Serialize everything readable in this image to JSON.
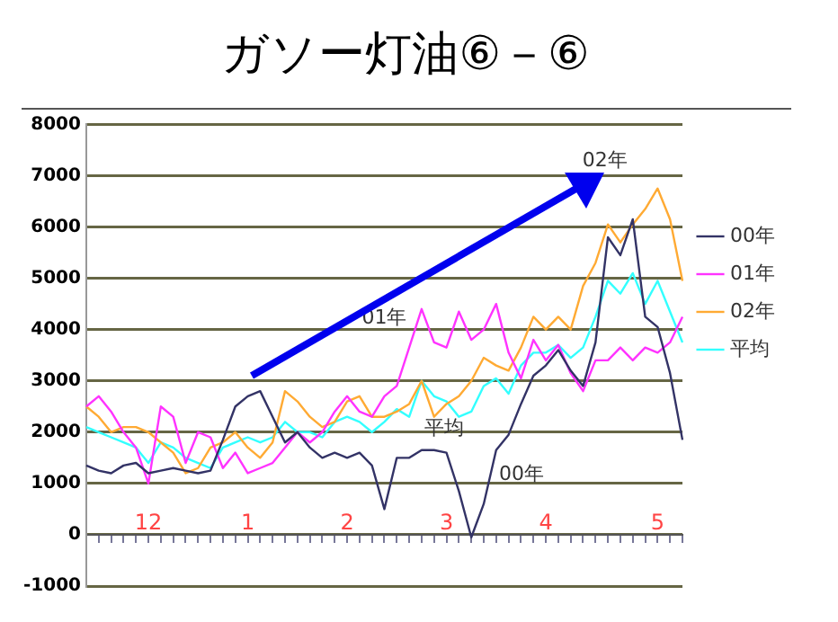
{
  "chart_data": {
    "type": "line",
    "title": "ガソー灯油⑥－⑥",
    "categories": [
      null,
      null,
      null,
      null,
      null,
      "12",
      null,
      null,
      null,
      null,
      null,
      null,
      null,
      "1",
      null,
      null,
      null,
      null,
      null,
      null,
      null,
      "2",
      null,
      null,
      null,
      null,
      null,
      null,
      null,
      "3",
      null,
      null,
      null,
      null,
      null,
      null,
      null,
      "4",
      null,
      null,
      null,
      null,
      null,
      null,
      null,
      null,
      "5",
      null,
      null
    ],
    "series": [
      {
        "name": "00年",
        "color": "#333366",
        "values": [
          1350,
          1250,
          1200,
          1350,
          1400,
          1200,
          1250,
          1300,
          1250,
          1200,
          1250,
          1850,
          2500,
          2700,
          2800,
          2300,
          1800,
          2000,
          1700,
          1500,
          1600,
          1500,
          1600,
          1350,
          500,
          1500,
          1500,
          1650,
          1650,
          1600,
          850,
          -50,
          600,
          1650,
          1950,
          2550,
          3100,
          3300,
          3600,
          3200,
          2900,
          3750,
          5800,
          5450,
          6150,
          4250,
          4050,
          3150,
          1850
        ]
      },
      {
        "name": "01年",
        "color": "#ff33ff",
        "values": [
          2500,
          2700,
          2400,
          2000,
          1700,
          1000,
          2500,
          2300,
          1400,
          2000,
          1900,
          1300,
          1600,
          1200,
          1300,
          1400,
          1700,
          2000,
          1800,
          2000,
          2400,
          2700,
          2400,
          2300,
          2700,
          2900,
          3650,
          4400,
          3750,
          3650,
          4350,
          3800,
          4000,
          4500,
          3550,
          3050,
          3800,
          3400,
          3700,
          3150,
          2800,
          3400,
          3400,
          3650,
          3400,
          3650,
          3550,
          3750,
          4250
        ]
      },
      {
        "name": "02年",
        "color": "#ffaa33",
        "values": [
          2500,
          2300,
          2000,
          2100,
          2100,
          2000,
          1800,
          1600,
          1200,
          1300,
          1700,
          1800,
          2000,
          1700,
          1500,
          1800,
          2800,
          2600,
          2300,
          2100,
          2200,
          2600,
          2700,
          2300,
          2300,
          2400,
          2550,
          3000,
          2300,
          2550,
          2700,
          3000,
          3450,
          3300,
          3200,
          3650,
          4250,
          4000,
          4250,
          4000,
          4850,
          5300,
          6050,
          5700,
          6050,
          6350,
          6750,
          6150,
          4950
        ]
      },
      {
        "name": "平均",
        "color": "#33ffff",
        "values": [
          2100,
          2000,
          1900,
          1800,
          1700,
          1400,
          1800,
          1700,
          1500,
          1400,
          1300,
          1700,
          1800,
          1900,
          1800,
          1900,
          2200,
          2000,
          2000,
          1900,
          2200,
          2300,
          2200,
          2000,
          2200,
          2450,
          2300,
          3000,
          2700,
          2600,
          2300,
          2400,
          2900,
          3050,
          2750,
          3300,
          3550,
          3550,
          3700,
          3450,
          3650,
          4250,
          4950,
          4700,
          5100,
          4500,
          4950,
          4350,
          3750
        ]
      }
    ],
    "annotations": [
      "01年",
      "02年",
      "平均",
      "00年"
    ],
    "ylim": [
      -1000,
      8000
    ],
    "yticks": [
      -1000,
      0,
      1000,
      2000,
      3000,
      4000,
      5000,
      6000,
      7000,
      8000
    ],
    "grid": "y",
    "legend": "right",
    "marker": "none",
    "line_style": "solid"
  }
}
